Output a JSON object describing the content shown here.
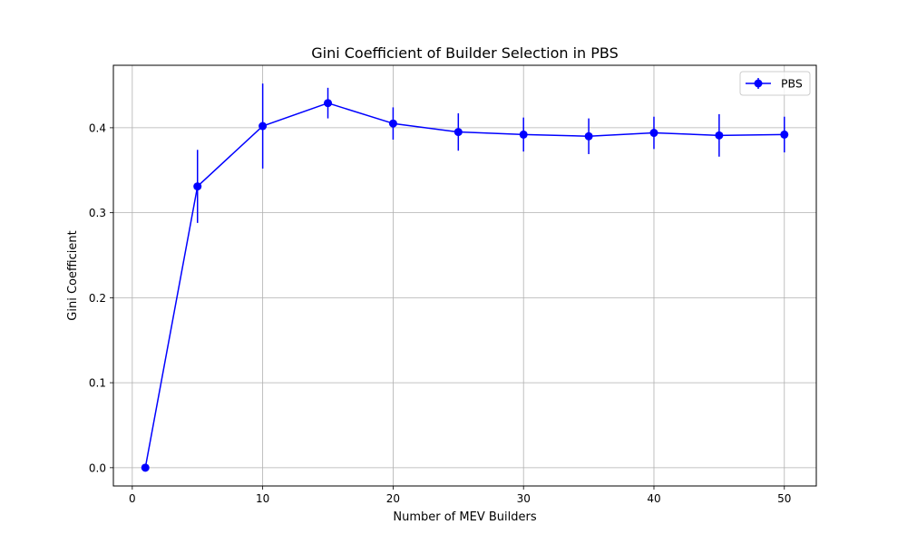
{
  "chart_data": {
    "type": "line",
    "title": "Gini Coefficient of Builder Selection in PBS",
    "xlabel": "Number of MEV Builders",
    "ylabel": "Gini Coefficient",
    "xlim": [
      -1.45,
      52.45
    ],
    "ylim": [
      -0.0215,
      0.4735
    ],
    "xticks": [
      0,
      10,
      20,
      30,
      40,
      50
    ],
    "yticks": [
      0.0,
      0.1,
      0.2,
      0.3,
      0.4
    ],
    "xtick_labels": [
      "0",
      "10",
      "20",
      "30",
      "40",
      "50"
    ],
    "ytick_labels": [
      "0.0",
      "0.1",
      "0.2",
      "0.3",
      "0.4"
    ],
    "grid": true,
    "legend_position": "top-right",
    "series": [
      {
        "name": "PBS",
        "color": "#0000ff",
        "x": [
          1,
          5,
          10,
          15,
          20,
          25,
          30,
          35,
          40,
          45,
          50
        ],
        "y": [
          0.0,
          0.331,
          0.402,
          0.429,
          0.405,
          0.395,
          0.392,
          0.39,
          0.394,
          0.391,
          0.392
        ],
        "yerr": [
          0.0,
          0.043,
          0.05,
          0.018,
          0.019,
          0.022,
          0.02,
          0.021,
          0.019,
          0.025,
          0.021
        ]
      }
    ]
  }
}
